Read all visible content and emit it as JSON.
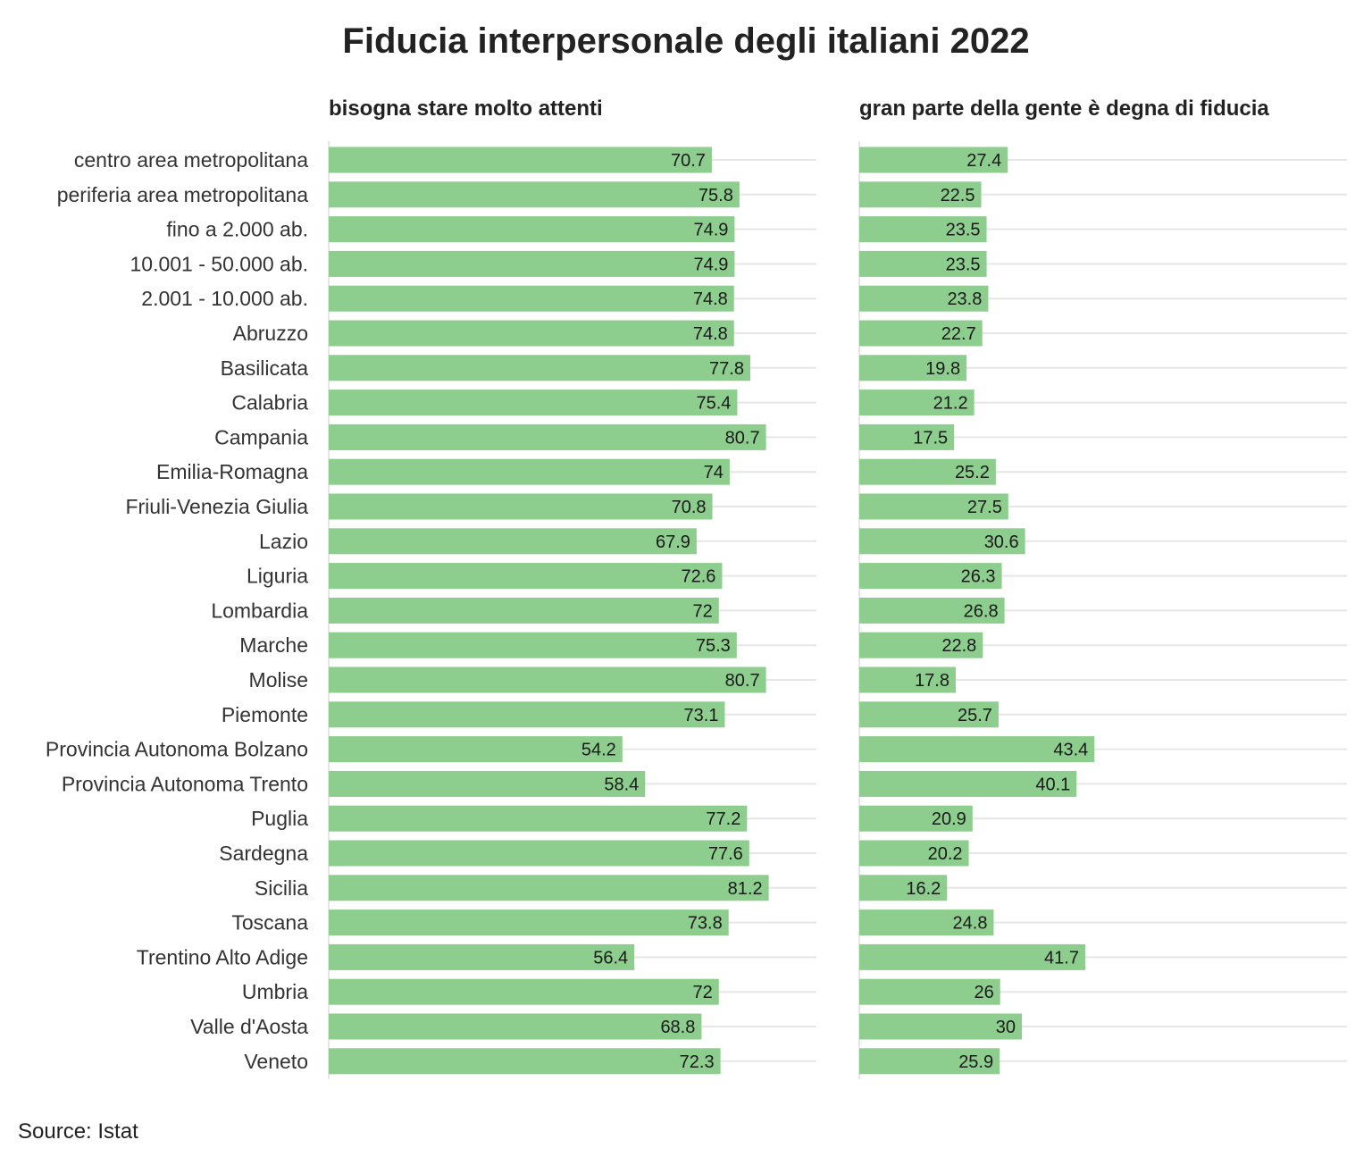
{
  "chart_data": {
    "type": "bar",
    "orientation": "horizontal",
    "title": "Fiducia interpersonale degli italiani 2022",
    "categories": [
      "centro area metropolitana",
      "periferia area metropolitana",
      "fino a 2.000 ab.",
      "10.001 - 50.000 ab.",
      "2.001 - 10.000 ab.",
      "Abruzzo",
      "Basilicata",
      "Calabria",
      "Campania",
      "Emilia-Romagna",
      "Friuli-Venezia Giulia",
      "Lazio",
      "Liguria",
      "Lombardia",
      "Marche",
      "Molise",
      "Piemonte",
      "Provincia Autonoma Bolzano",
      "Provincia Autonoma Trento",
      "Puglia",
      "Sardegna",
      "Sicilia",
      "Toscana",
      "Trentino Alto Adige",
      "Umbria",
      "Valle d'Aosta",
      "Veneto"
    ],
    "series": [
      {
        "name": "bisogna stare molto attenti",
        "values": [
          70.7,
          75.8,
          74.9,
          74.9,
          74.8,
          74.8,
          77.8,
          75.4,
          80.7,
          74,
          70.8,
          67.9,
          72.6,
          72,
          75.3,
          80.7,
          73.1,
          54.2,
          58.4,
          77.2,
          77.6,
          81.2,
          73.8,
          56.4,
          72,
          68.8,
          72.3
        ]
      },
      {
        "name": "gran parte della gente è degna di fiducia",
        "values": [
          27.4,
          22.5,
          23.5,
          23.5,
          23.8,
          22.7,
          19.8,
          21.2,
          17.5,
          25.2,
          27.5,
          30.6,
          26.3,
          26.8,
          22.8,
          17.8,
          25.7,
          43.4,
          40.1,
          20.9,
          20.2,
          16.2,
          24.8,
          41.7,
          26,
          30,
          25.9
        ]
      }
    ],
    "xlim": [
      0,
      90
    ],
    "grid": true,
    "legend": "none",
    "bar_color": "#8dce8e",
    "source": "Source: Istat"
  }
}
